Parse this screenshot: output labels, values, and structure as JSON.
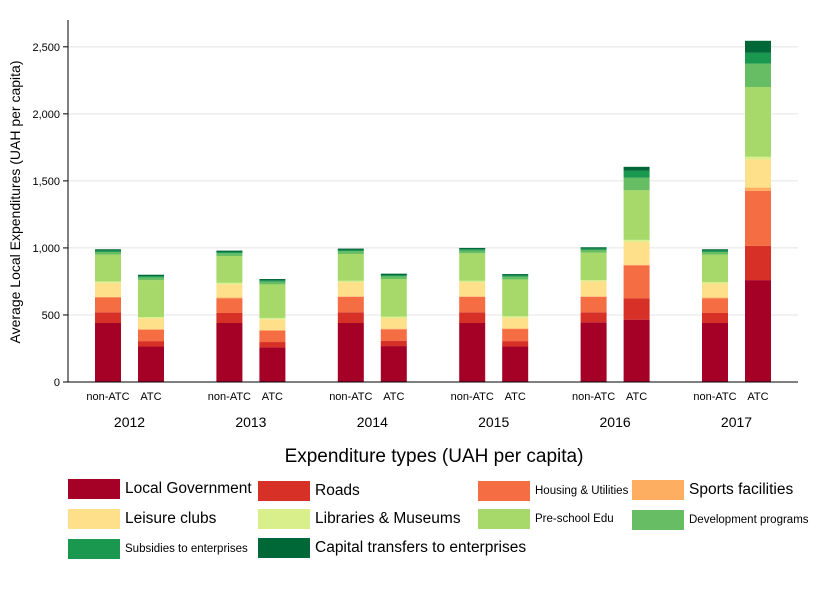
{
  "chart_data": {
    "type": "bar",
    "stacked": true,
    "ylabel": "Average Local Expenditures (UAH per capita)",
    "xlabel": "Expenditure types (UAH per capita)",
    "yticks": [
      0,
      500,
      1000,
      1500,
      2000,
      2500
    ],
    "ytick_labels": [
      "0",
      "500",
      "1,000",
      "1,500",
      "2,000",
      "2,500"
    ],
    "ylim": [
      0,
      2700
    ],
    "grid": true,
    "legend_position": "bottom",
    "groups": [
      "2012",
      "2013",
      "2014",
      "2015",
      "2016",
      "2017"
    ],
    "subcategories": [
      "non-ATC",
      "ATC"
    ],
    "series": [
      {
        "name": "Local Government",
        "color": "#a50026",
        "values": [
          [
            440,
            265
          ],
          [
            440,
            258
          ],
          [
            440,
            268
          ],
          [
            440,
            265
          ],
          [
            445,
            465
          ],
          [
            440,
            760
          ]
        ]
      },
      {
        "name": "Roads",
        "color": "#d73027",
        "values": [
          [
            80,
            40
          ],
          [
            75,
            40
          ],
          [
            80,
            40
          ],
          [
            80,
            40
          ],
          [
            75,
            160
          ],
          [
            75,
            255
          ]
        ]
      },
      {
        "name": "Housing & Utilities",
        "color": "#f46d43",
        "values": [
          [
            110,
            85
          ],
          [
            110,
            85
          ],
          [
            115,
            85
          ],
          [
            115,
            90
          ],
          [
            115,
            245
          ],
          [
            110,
            410
          ]
        ]
      },
      {
        "name": "Sports facilities",
        "color": "#fdae61",
        "values": [
          [
            5,
            5
          ],
          [
            5,
            5
          ],
          [
            5,
            5
          ],
          [
            5,
            5
          ],
          [
            5,
            5
          ],
          [
            5,
            25
          ]
        ]
      },
      {
        "name": "Leisure clubs",
        "color": "#fee08b",
        "values": [
          [
            105,
            80
          ],
          [
            100,
            80
          ],
          [
            105,
            80
          ],
          [
            105,
            80
          ],
          [
            110,
            170
          ],
          [
            105,
            210
          ]
        ]
      },
      {
        "name": "Libraries & Museums",
        "color": "#d9ef8b",
        "values": [
          [
            10,
            10
          ],
          [
            10,
            10
          ],
          [
            10,
            10
          ],
          [
            10,
            10
          ],
          [
            10,
            15
          ],
          [
            10,
            20
          ]
        ]
      },
      {
        "name": "Pre-school Edu",
        "color": "#a6d96a",
        "values": [
          [
            200,
            275
          ],
          [
            200,
            250
          ],
          [
            200,
            280
          ],
          [
            205,
            275
          ],
          [
            205,
            370
          ],
          [
            205,
            520
          ]
        ]
      },
      {
        "name": "Development programs",
        "color": "#66bd63",
        "values": [
          [
            20,
            20
          ],
          [
            20,
            20
          ],
          [
            20,
            20
          ],
          [
            20,
            20
          ],
          [
            20,
            95
          ],
          [
            20,
            175
          ]
        ]
      },
      {
        "name": "Subsidies to enterprises",
        "color": "#1a9850",
        "values": [
          [
            10,
            10
          ],
          [
            10,
            10
          ],
          [
            10,
            10
          ],
          [
            10,
            10
          ],
          [
            10,
            50
          ],
          [
            10,
            80
          ]
        ]
      },
      {
        "name": "Capital transfers to enterprises",
        "color": "#006837",
        "values": [
          [
            10,
            10
          ],
          [
            10,
            10
          ],
          [
            10,
            10
          ],
          [
            10,
            10
          ],
          [
            10,
            30
          ],
          [
            10,
            90
          ]
        ]
      }
    ]
  },
  "legend": {
    "items": [
      {
        "label": "Local Government",
        "color": "#a50026"
      },
      {
        "label": "Roads",
        "color": "#d73027"
      },
      {
        "label": "Housing & Utilities",
        "color": "#f46d43"
      },
      {
        "label": "Sports facilities",
        "color": "#fdae61"
      },
      {
        "label": "Leisure clubs",
        "color": "#fee08b"
      },
      {
        "label": "Libraries & Museums",
        "color": "#d9ef8b"
      },
      {
        "label": "Pre-school Edu",
        "color": "#a6d96a"
      },
      {
        "label": "Development programs",
        "color": "#66bd63"
      },
      {
        "label": "Subsidies to enterprises",
        "color": "#1a9850"
      },
      {
        "label": "Capital transfers to enterprises",
        "color": "#006837"
      }
    ]
  }
}
